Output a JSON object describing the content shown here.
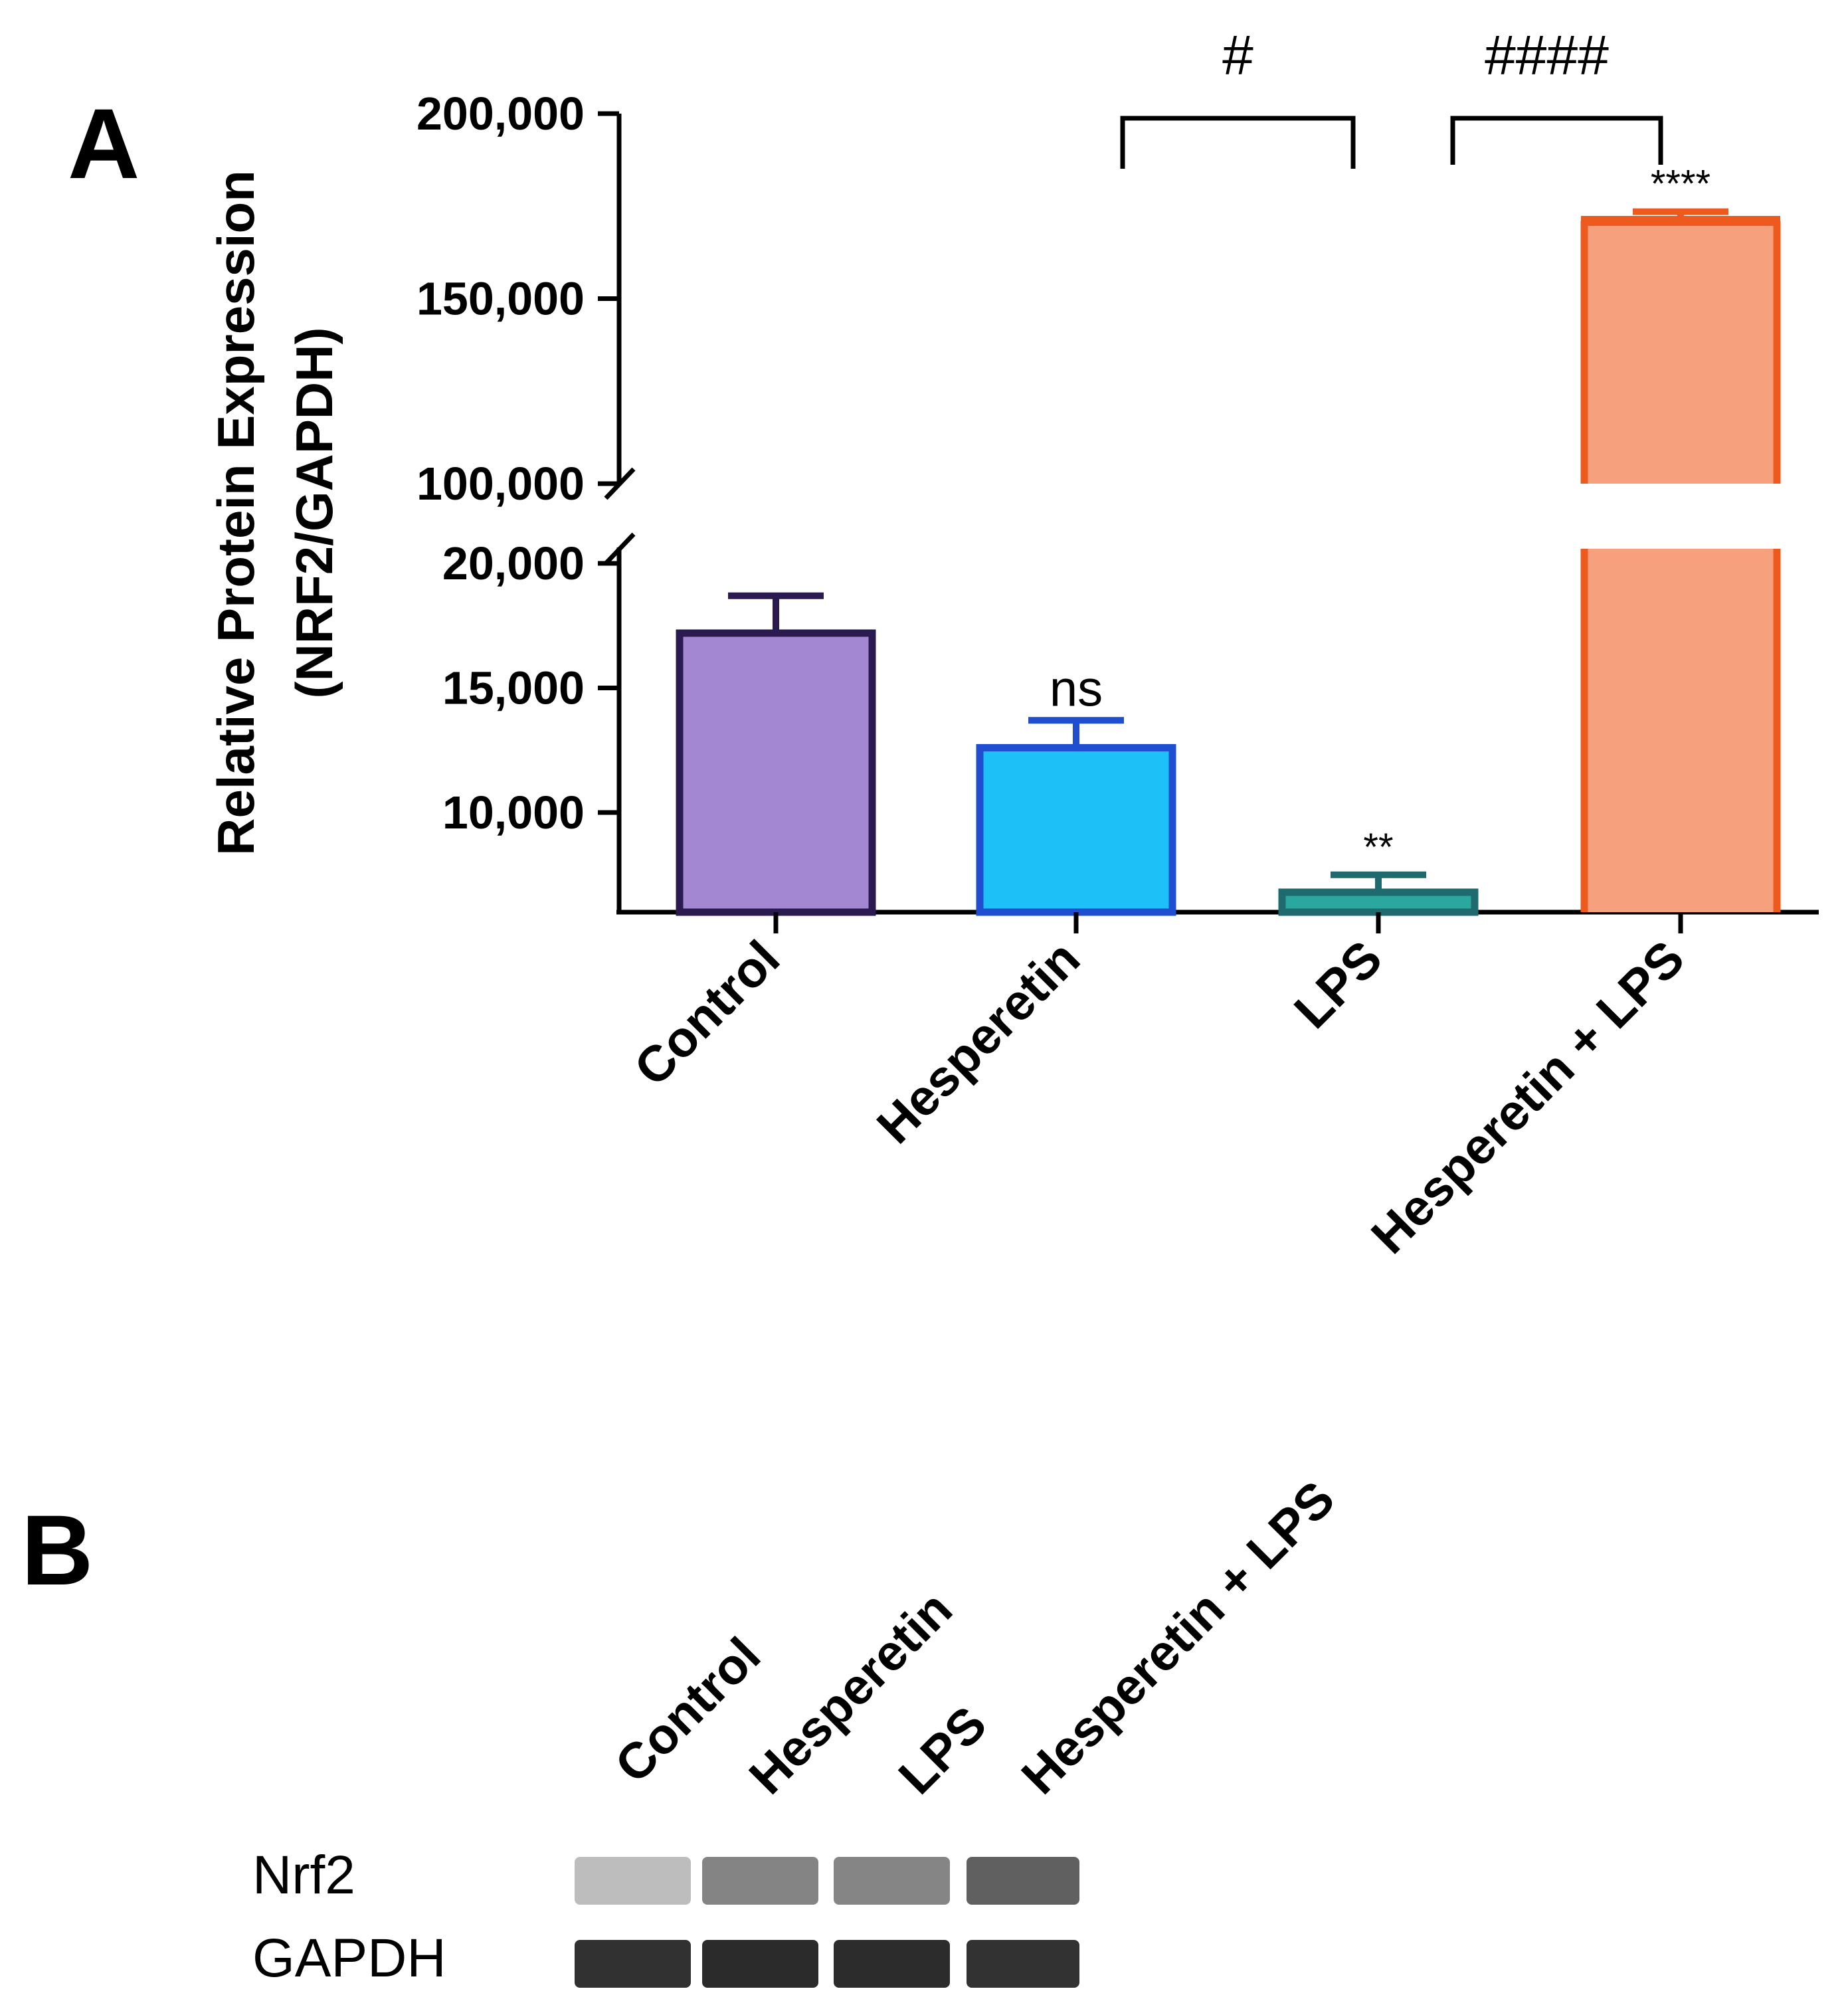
{
  "panel_labels": {
    "a": "A",
    "b": "B"
  },
  "chart_data": {
    "type": "bar",
    "ylabel": "Relative Protein Expression",
    "ylabel2": "(NRF2/GAPDH)",
    "axis_break": {
      "lower_range": [
        6000,
        20000
      ],
      "upper_range": [
        100000,
        200000
      ]
    },
    "yticks_lower": [
      10000,
      15000,
      20000
    ],
    "yticks_upper": [
      100000,
      150000,
      200000
    ],
    "ytick_labels_lower": [
      "10,000",
      "15,000",
      "20,000"
    ],
    "ytick_labels_upper": [
      "100,000",
      "150,000",
      "200,000"
    ],
    "categories": [
      "Control",
      "Hesperetin",
      "LPS",
      "Hesperetin + LPS"
    ],
    "values": [
      17200,
      12600,
      6800,
      171000
    ],
    "errors": [
      1500,
      1100,
      700,
      2500
    ],
    "significance": [
      "",
      "ns",
      "**",
      "****"
    ],
    "colors": {
      "fills": [
        "#a487d3",
        "#1ec0f8",
        "#2aa8a0",
        "#f7a07e"
      ],
      "strokes": [
        "#2b1a4f",
        "#1f4fd0",
        "#1e6a6f",
        "#ee5a1e"
      ]
    },
    "comparisons": [
      {
        "from": "Hesperetin",
        "to": "LPS",
        "label": "#"
      },
      {
        "from": "LPS",
        "to": "Hesperetin + LPS",
        "label": "####"
      }
    ]
  },
  "blot": {
    "lanes": [
      "Control",
      "Hesperetin",
      "LPS",
      "Hesperetin + LPS"
    ],
    "rows": [
      {
        "label": "Nrf2",
        "intensities": [
          0.35,
          0.6,
          0.6,
          0.78
        ],
        "colors": [
          "#b8b8b8",
          "#7f7f7f",
          "#808080",
          "#5c5c5c"
        ]
      },
      {
        "label": "GAPDH",
        "intensities": [
          0.92,
          0.95,
          0.95,
          0.93
        ],
        "colors": [
          "#2f2f2f",
          "#2a2a2a",
          "#2b2b2b",
          "#303030"
        ]
      }
    ]
  }
}
